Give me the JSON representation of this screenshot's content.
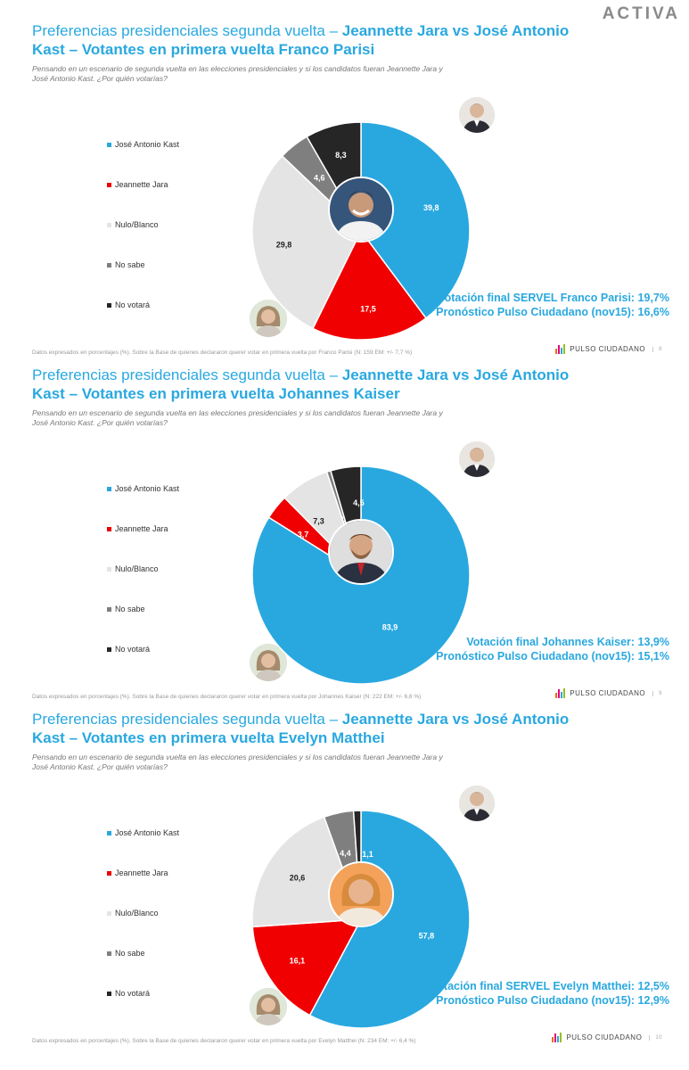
{
  "brand": "ACTIVA",
  "legend_labels": [
    "José Antonio Kast",
    "Jeannette Jara",
    "Nulo/Blanco",
    "No sabe",
    "No votará"
  ],
  "colors": {
    "kast": "#29a8e0",
    "jara": "#f00000",
    "nulo": "#e4e4e4",
    "nosabe": "#7f7f7f",
    "novotara": "#262626",
    "accent": "#29a8e0"
  },
  "pulso_label": "PULSO CIUDADANO",
  "panels": [
    {
      "title_light": "Preferencias presidenciales segunda vuelta – ",
      "title_bold": "Jeannette Jara vs José Antonio Kast – Votantes en primera vuelta Franco Parisi",
      "question": "Pensando en un escenario de segunda vuelta en las elecciones presidenciales y si los candidatos fueran Jeannette Jara y José Antonio Kast. ¿Por quién votarías?",
      "result_line1": "Votación final SERVEL Franco Parisi: 19,7%",
      "result_line2": "Pronóstico Pulso Ciudadano (nov15): 16,6%",
      "footnote": "Datos expresados en porcentajes (%). Sobre la Base de quienes declararon querer votar en primera vuelta por Franco Parisi (N: 159  EM: +/- 7,7 %)",
      "page": "8"
    },
    {
      "title_light": "Preferencias presidenciales segunda vuelta – ",
      "title_bold": "Jeannette Jara vs José Antonio Kast – Votantes en primera vuelta Johannes Kaiser",
      "question": "Pensando en un escenario de segunda vuelta en las elecciones presidenciales y si los candidatos fueran Jeannette Jara y José Antonio Kast. ¿Por quién votarías?",
      "result_line1": "Votación final Johannes Kaiser: 13,9%",
      "result_line2": "Pronóstico Pulso Ciudadano (nov15): 15,1%",
      "footnote": "Datos expresados en porcentajes (%). Sobre la Base de quienes declararon querer votar en primera vuelta por Johannes Kaiser (N: 222  EM: +/- 6,6 %)",
      "page": "9"
    },
    {
      "title_light": "Preferencias presidenciales segunda vuelta – ",
      "title_bold": "Jeannette Jara vs José Antonio Kast – Votantes en primera vuelta Evelyn Matthei",
      "question": "Pensando en un escenario de segunda vuelta en las elecciones presidenciales y si los candidatos fueran Jeannette Jara y José Antonio Kast. ¿Por quién votarías?",
      "result_line1": "Votación final SERVEL Evelyn Matthei: 12,5%",
      "result_line2": "Pronóstico Pulso Ciudadano (nov15): 12,9%",
      "footnote": "Datos expresados en porcentajes (%). Sobre la Base de quienes declararon querer votar en primera vuelta por Evelyn Matthei (N: 234  EM: +/- 6,4 %)",
      "page": "10"
    }
  ],
  "chart_data": [
    {
      "type": "pie",
      "categories": [
        "José Antonio Kast",
        "Jeannette Jara",
        "Nulo/Blanco",
        "No sabe",
        "No votará"
      ],
      "values": [
        39.8,
        17.5,
        29.8,
        4.6,
        8.3
      ],
      "labels": [
        "39,8",
        "17,5",
        "29,8",
        "4,6",
        "8,3"
      ]
    },
    {
      "type": "pie",
      "categories": [
        "José Antonio Kast",
        "Jeannette Jara",
        "Nulo/Blanco",
        "No sabe",
        "No votará"
      ],
      "values": [
        83.9,
        3.7,
        7.3,
        0.6,
        4.5
      ],
      "labels": [
        "83,9",
        "3,7",
        "7,3",
        "0,6",
        "4,5"
      ]
    },
    {
      "type": "pie",
      "categories": [
        "José Antonio Kast",
        "Jeannette Jara",
        "Nulo/Blanco",
        "No sabe",
        "No votará"
      ],
      "values": [
        57.8,
        16.1,
        20.6,
        4.4,
        1.1
      ],
      "labels": [
        "57,8",
        "16,1",
        "20,6",
        "4,4",
        "1,1"
      ]
    }
  ]
}
